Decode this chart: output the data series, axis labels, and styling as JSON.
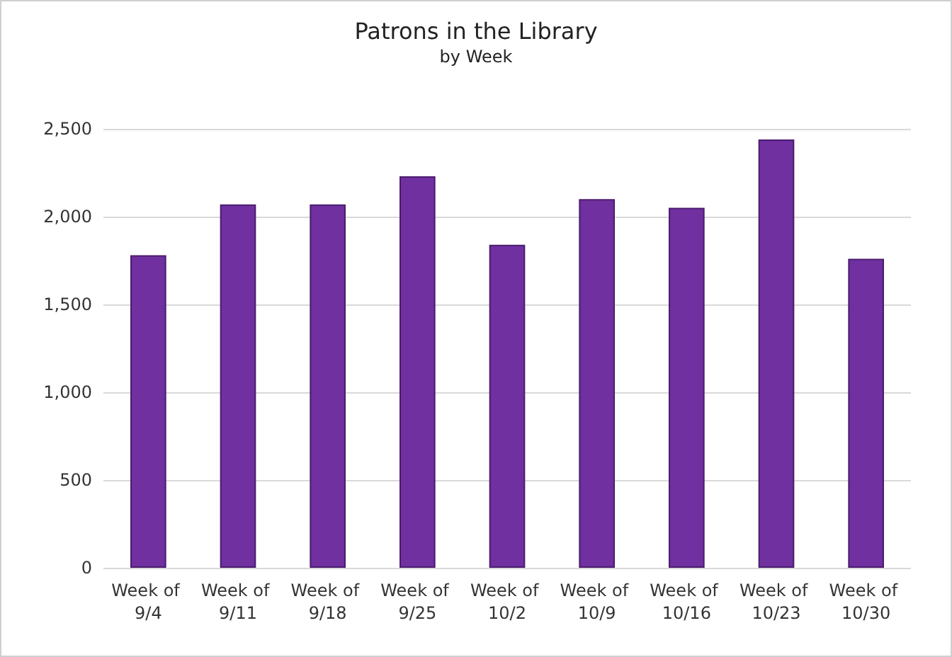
{
  "chart_data": {
    "type": "bar",
    "title": "Patrons in the Library",
    "subtitle": "by Week",
    "categories": [
      "Week of 9/4",
      "Week of 9/11",
      "Week of 9/18",
      "Week of 9/25",
      "Week of 10/2",
      "Week of 10/9",
      "Week of 10/16",
      "Week of 10/23",
      "Week of 10/30"
    ],
    "values": [
      1780,
      2070,
      2070,
      2230,
      1840,
      2100,
      2050,
      2440,
      1760
    ],
    "color": "#7030a0",
    "ylim": [
      0,
      2500
    ],
    "yticks": [
      0,
      500,
      {
        "value": 1000,
        "label": "1,000"
      },
      {
        "value": 1500,
        "label": "1,500"
      },
      {
        "value": 2000,
        "label": "2,000"
      },
      {
        "value": 2500,
        "label": "2,500"
      }
    ],
    "grid": true
  }
}
